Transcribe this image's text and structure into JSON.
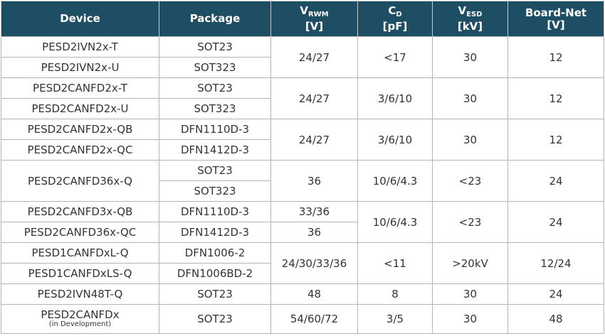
{
  "headers": {
    "device": "Device",
    "package": "Package",
    "vrwm_main": "V",
    "vrwm_sub": "RWM",
    "vrwm_unit": "[V]",
    "cd_main": "C",
    "cd_sub": "D",
    "cd_unit": "[pF]",
    "vesd_main": "V",
    "vesd_sub": "ESD",
    "vesd_unit": "[kV]",
    "boardnet_main": "Board-Net",
    "boardnet_unit": "[V]"
  },
  "groups": [
    {
      "devices": [
        "PESD2IVN2x-T",
        "PESD2IVN2x-U"
      ],
      "packages": [
        "SOT23",
        "SOT323"
      ],
      "vrwm": "24/27",
      "cd": "<17",
      "vesd": "30",
      "boardnet": "12"
    },
    {
      "devices": [
        "PESD2CANFD2x-T",
        "PESD2CANFD2x-U"
      ],
      "packages": [
        "SOT23",
        "SOT323"
      ],
      "vrwm": "24/27",
      "cd": "3/6/10",
      "vesd": "30",
      "boardnet": "12"
    },
    {
      "devices": [
        "PESD2CANFD2x-QB",
        "PESD2CANFD2x-QC"
      ],
      "packages": [
        "DFN1110D-3",
        "DFN1412D-3"
      ],
      "vrwm": "24/27",
      "cd": "3/6/10",
      "vesd": "30",
      "boardnet": "12"
    },
    {
      "device": "PESD2CANFD36x-Q",
      "packages": [
        "SOT23",
        "SOT323"
      ],
      "vrwm": "36",
      "cd": "10/6/4.3",
      "vesd": "<23",
      "boardnet": "24"
    },
    {
      "devices": [
        "PESD2CANFD3x-QB",
        "PESD2CANFD36x-QC"
      ],
      "packages": [
        "DFN1110D-3",
        "DFN1412D-3"
      ],
      "vrwm_rows": [
        "33/36",
        "36"
      ],
      "cd": "10/6/4.3",
      "vesd": "<23",
      "boardnet": "24"
    },
    {
      "devices": [
        "PESD1CANFDxL-Q",
        "PESD1CANFDxLS-Q"
      ],
      "packages": [
        "DFN1006-2",
        "DFN1006BD-2"
      ],
      "vrwm": "24/30/33/36",
      "cd": "<11",
      "vesd": ">20kV",
      "boardnet": "12/24"
    },
    {
      "device": "PESD2IVN48T-Q",
      "package": "SOT23",
      "vrwm": "48",
      "cd": "8",
      "vesd": "30",
      "boardnet": "24"
    },
    {
      "device": "PESD2CANFDx",
      "device_note": "(in Development)",
      "package": "SOT23",
      "vrwm": "54/60/72",
      "cd": "3/5",
      "vesd": "30",
      "boardnet": "48"
    }
  ]
}
